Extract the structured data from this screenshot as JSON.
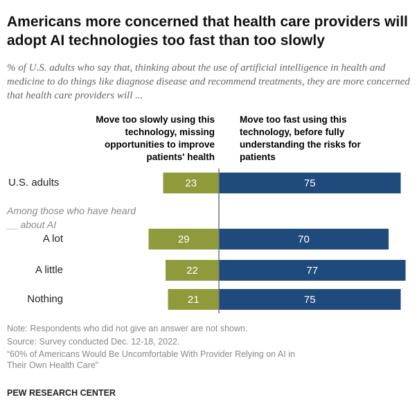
{
  "title": "Americans more concerned that health care providers will adopt AI technologies too fast than too slowly",
  "subtitle": "% of U.S. adults who say that, thinking about the use of artificial intelligence in health and medicine to do things like diagnose disease and recommend treatments, they are more concerned that health care providers will ...",
  "chart_data": {
    "type": "bar",
    "orientation": "horizontal-diverging",
    "categories": [
      "U.S. adults",
      "A lot",
      "A little",
      "Nothing"
    ],
    "group_note": "Among those who have heard __ about AI",
    "series": [
      {
        "name": "Move too slowly using this technology, missing opportunities to improve patients' health",
        "values": [
          23,
          29,
          22,
          21
        ],
        "color": "#8f9a3b"
      },
      {
        "name": "Move too fast using this technology, before fully understanding the risks for patients",
        "values": [
          75,
          70,
          77,
          75
        ],
        "color": "#1f4a7c"
      }
    ]
  },
  "notes": {
    "note": "Note: Respondents who did not give an answer are not shown.",
    "source": "Source: Survey conducted Dec. 12-18, 2022.",
    "report": "“60% of Americans Would Be Uncomfortable With Provider Relying on AI in Their Own Health Care”"
  },
  "brand": "PEW RESEARCH CENTER"
}
